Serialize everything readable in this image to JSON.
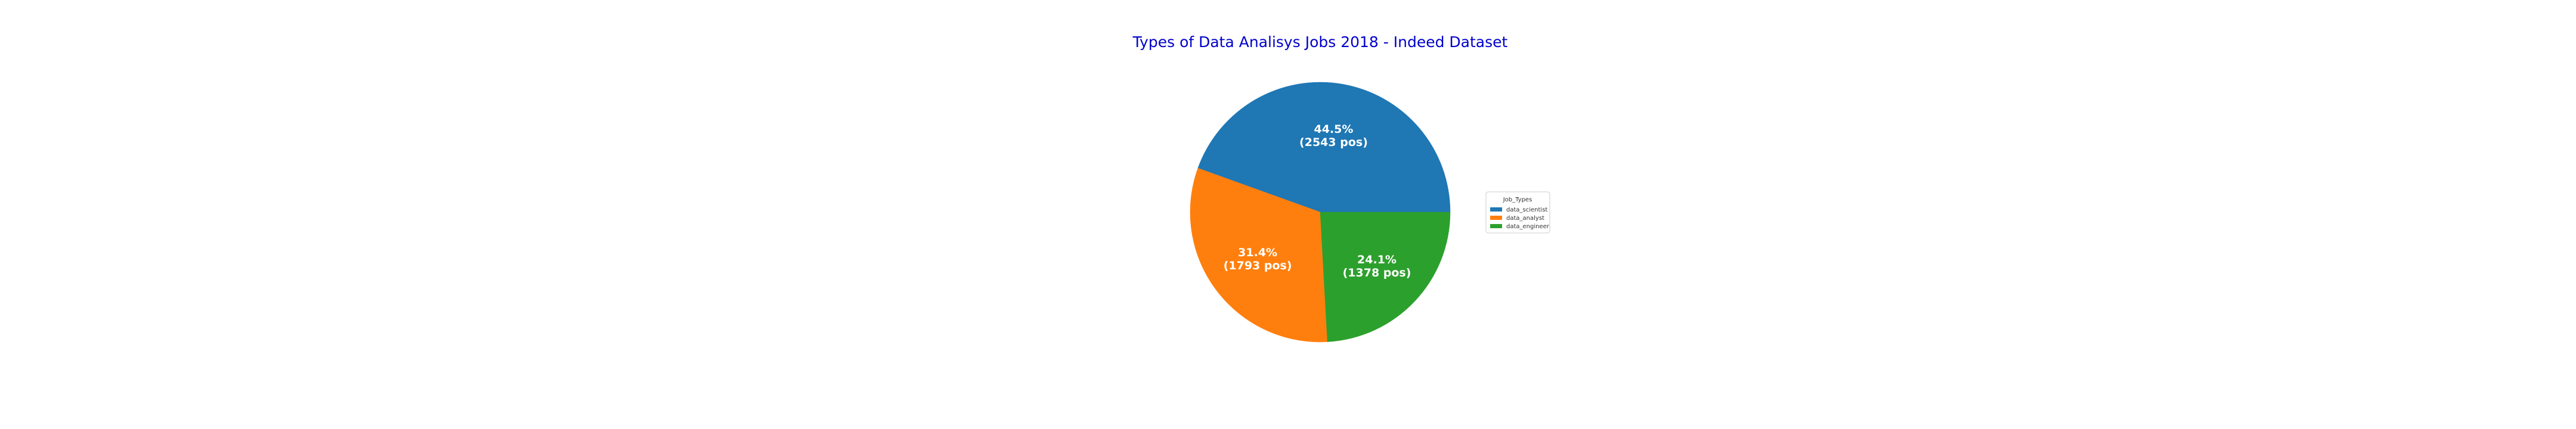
{
  "chart_data": {
    "type": "pie",
    "title": "Types of Data Analisys Jobs 2018 - Indeed Dataset",
    "categories": [
      "data_scientist",
      "data_analyst",
      "data_engineer"
    ],
    "values": [
      2543,
      1793,
      1378
    ],
    "percentages": [
      44.5,
      31.4,
      24.1
    ],
    "slice_labels": [
      [
        "44.5%",
        "(2543 pos)"
      ],
      [
        "31.4%",
        "(1793 pos)"
      ],
      [
        "24.1%",
        "(1378 pos)"
      ]
    ],
    "colors": [
      "#1f77b4",
      "#ff7f0e",
      "#2ca02c"
    ],
    "legend": {
      "title": "Job_Types",
      "placement": "right",
      "entries": [
        "data_scientist",
        "data_analyst",
        "data_engineer"
      ]
    }
  },
  "style": {
    "title_color": "#0000cd",
    "label_color": "#ffffff",
    "legend_text_color": "#333333",
    "legend_border_color": "#cccccc"
  }
}
